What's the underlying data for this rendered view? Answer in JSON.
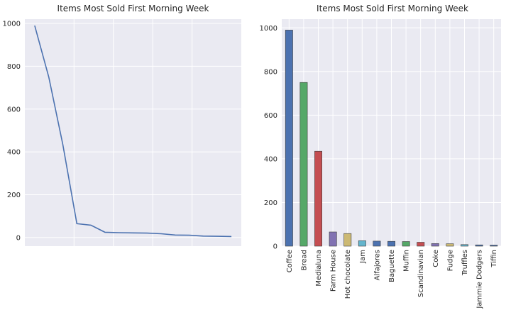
{
  "chart_data": [
    {
      "type": "line",
      "title": "Items Most Sold First Morning Week",
      "xlabel": "",
      "ylabel": "",
      "ylim": [
        -40,
        1020
      ],
      "yticks": [
        0,
        200,
        400,
        600,
        800,
        1000
      ],
      "grid": true,
      "color": "#4c72b0",
      "x": [
        0,
        1,
        2,
        3,
        4,
        5,
        6,
        7,
        8,
        9,
        10,
        11,
        12,
        13,
        14
      ],
      "values": [
        990,
        750,
        435,
        65,
        58,
        25,
        23,
        22,
        21,
        18,
        12,
        11,
        7,
        6,
        5
      ]
    },
    {
      "type": "bar",
      "title": "Items Most Sold First Morning Week",
      "xlabel": "",
      "ylabel": "",
      "ylim": [
        0,
        1040
      ],
      "yticks": [
        0,
        200,
        400,
        600,
        800,
        1000
      ],
      "grid": true,
      "categories": [
        "Coffee",
        "Bread",
        "Medialuna",
        "Farm House",
        "Hot chocolate",
        "Jam",
        "Alfajores",
        "Baguette",
        "Muffin",
        "Scandinavian",
        "Coke",
        "Fudge",
        "Truffles",
        "Jammie Dodgers",
        "Tiffin"
      ],
      "values": [
        990,
        750,
        435,
        65,
        58,
        25,
        23,
        22,
        21,
        18,
        12,
        11,
        7,
        6,
        5
      ],
      "colors": [
        "#4c72b0",
        "#55a868",
        "#c44e52",
        "#8172b2",
        "#ccb974",
        "#64b5cd",
        "#4c72b0",
        "#4c72b0",
        "#55a868",
        "#c44e52",
        "#8172b2",
        "#ccb974",
        "#64b5cd",
        "#4c72b0",
        "#4c72b0"
      ]
    }
  ]
}
